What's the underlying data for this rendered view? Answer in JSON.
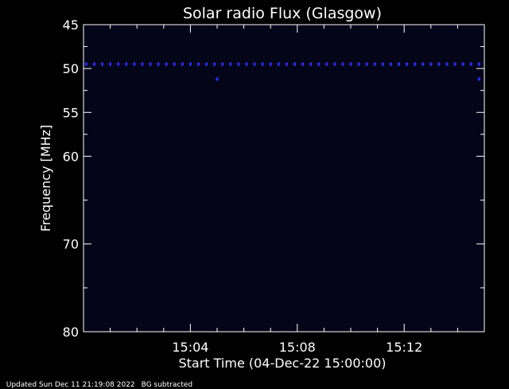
{
  "chart_data": {
    "type": "heatmap",
    "title": "Solar radio Flux (Glasgow)",
    "xlabel": "Start Time (04-Dec-22 15:00:00)",
    "ylabel": "Frequency [MHz]",
    "x_range_minutes": [
      0,
      15
    ],
    "x_ticks": [
      "15:04",
      "15:08",
      "15:12"
    ],
    "x_tick_minutes": [
      4,
      8,
      12
    ],
    "ylim": [
      45,
      80
    ],
    "y_ticks": [
      45,
      50,
      55,
      60,
      70,
      80
    ],
    "y_minor_ticks": [
      47.5,
      52.5,
      57.5,
      65,
      75
    ],
    "grid": false,
    "background_color": "#05051a",
    "signal_color": "#2a2aff",
    "series": [
      {
        "frequency_mhz": 49.5,
        "minutes": [
          0.1,
          0.4,
          0.7,
          1.0,
          1.3,
          1.6,
          1.9,
          2.2,
          2.5,
          2.8,
          3.1,
          3.4,
          3.7,
          4.0,
          4.3,
          4.6,
          4.9,
          5.2,
          5.5,
          5.8,
          6.1,
          6.4,
          6.7,
          7.0,
          7.3,
          7.6,
          7.9,
          8.2,
          8.5,
          8.8,
          9.1,
          9.4,
          9.7,
          10.0,
          10.3,
          10.6,
          10.9,
          11.2,
          11.5,
          11.8,
          12.1,
          12.4,
          12.7,
          13.0,
          13.3,
          13.6,
          13.9,
          14.2,
          14.5,
          14.8
        ]
      },
      {
        "frequency_mhz": 51.2,
        "minutes": [
          5.0,
          14.8
        ]
      }
    ]
  },
  "footer": {
    "updated": "Updated Sun Dec 11 21:19:08 2022",
    "note": "BG subtracted"
  }
}
